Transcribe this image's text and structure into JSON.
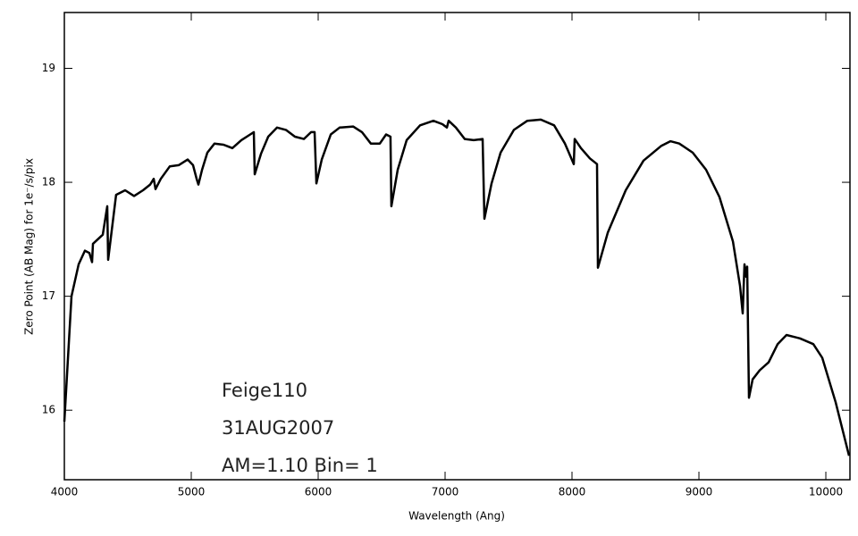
{
  "chart_data": {
    "type": "line",
    "x_label": "Wavelength (Ang)",
    "y_label": "Zero Point (AB Mag) for 1e⁻/s/pix",
    "annotations": [
      "Feige110",
      "31AUG2007",
      "AM=1.10    Bin=  1"
    ],
    "xlim": [
      4000,
      10190
    ],
    "ylim": [
      15.39,
      19.49
    ],
    "xticks": [
      4000,
      5000,
      6000,
      7000,
      8000,
      9000,
      10000
    ],
    "yticks": [
      16,
      17,
      18,
      19
    ],
    "grid": false,
    "series": [
      {
        "color": "#000000",
        "x": [
          4000,
          4056,
          4113,
          4162,
          4197,
          4218,
          4225,
          4303,
          4338,
          4345,
          4380,
          4408,
          4479,
          4549,
          4620,
          4676,
          4704,
          4718,
          4760,
          4831,
          4901,
          4972,
          5014,
          5042,
          5056,
          5085,
          5127,
          5183,
          5254,
          5324,
          5394,
          5465,
          5493,
          5500,
          5549,
          5606,
          5676,
          5746,
          5817,
          5887,
          5944,
          5972,
          5986,
          6028,
          6099,
          6169,
          6275,
          6345,
          6415,
          6486,
          6535,
          6570,
          6577,
          6627,
          6697,
          6803,
          6908,
          6979,
          7014,
          7028,
          7085,
          7155,
          7225,
          7296,
          7310,
          7366,
          7437,
          7542,
          7648,
          7754,
          7859,
          7944,
          8014,
          8021,
          8070,
          8141,
          8197,
          8204,
          8282,
          8423,
          8563,
          8704,
          8775,
          8845,
          8951,
          9056,
          9162,
          9268,
          9324,
          9345,
          9359,
          9373,
          9380,
          9394,
          9423,
          9479,
          9549,
          9620,
          9690,
          9796,
          9901,
          9972,
          10077,
          10183
        ],
        "values": [
          15.9,
          17.0,
          17.28,
          17.4,
          17.38,
          17.3,
          17.46,
          17.54,
          17.79,
          17.32,
          17.64,
          17.89,
          17.93,
          17.88,
          17.93,
          17.98,
          18.03,
          17.94,
          18.03,
          18.14,
          18.15,
          18.2,
          18.15,
          18.03,
          17.98,
          18.11,
          18.26,
          18.34,
          18.33,
          18.3,
          18.37,
          18.42,
          18.44,
          18.07,
          18.25,
          18.4,
          18.48,
          18.46,
          18.4,
          18.38,
          18.44,
          18.44,
          17.99,
          18.2,
          18.42,
          18.48,
          18.49,
          18.44,
          18.34,
          18.34,
          18.42,
          18.4,
          17.79,
          18.11,
          18.37,
          18.5,
          18.54,
          18.51,
          18.48,
          18.54,
          18.48,
          18.38,
          18.37,
          18.38,
          17.68,
          17.99,
          18.26,
          18.46,
          18.54,
          18.55,
          18.5,
          18.34,
          18.16,
          18.38,
          18.3,
          18.21,
          18.16,
          17.25,
          17.56,
          17.93,
          18.19,
          18.32,
          18.36,
          18.34,
          18.26,
          18.11,
          17.87,
          17.48,
          17.09,
          16.85,
          17.28,
          17.17,
          17.26,
          16.11,
          16.27,
          16.35,
          16.42,
          16.58,
          16.66,
          16.63,
          16.58,
          16.46,
          16.07,
          15.6
        ]
      }
    ]
  }
}
